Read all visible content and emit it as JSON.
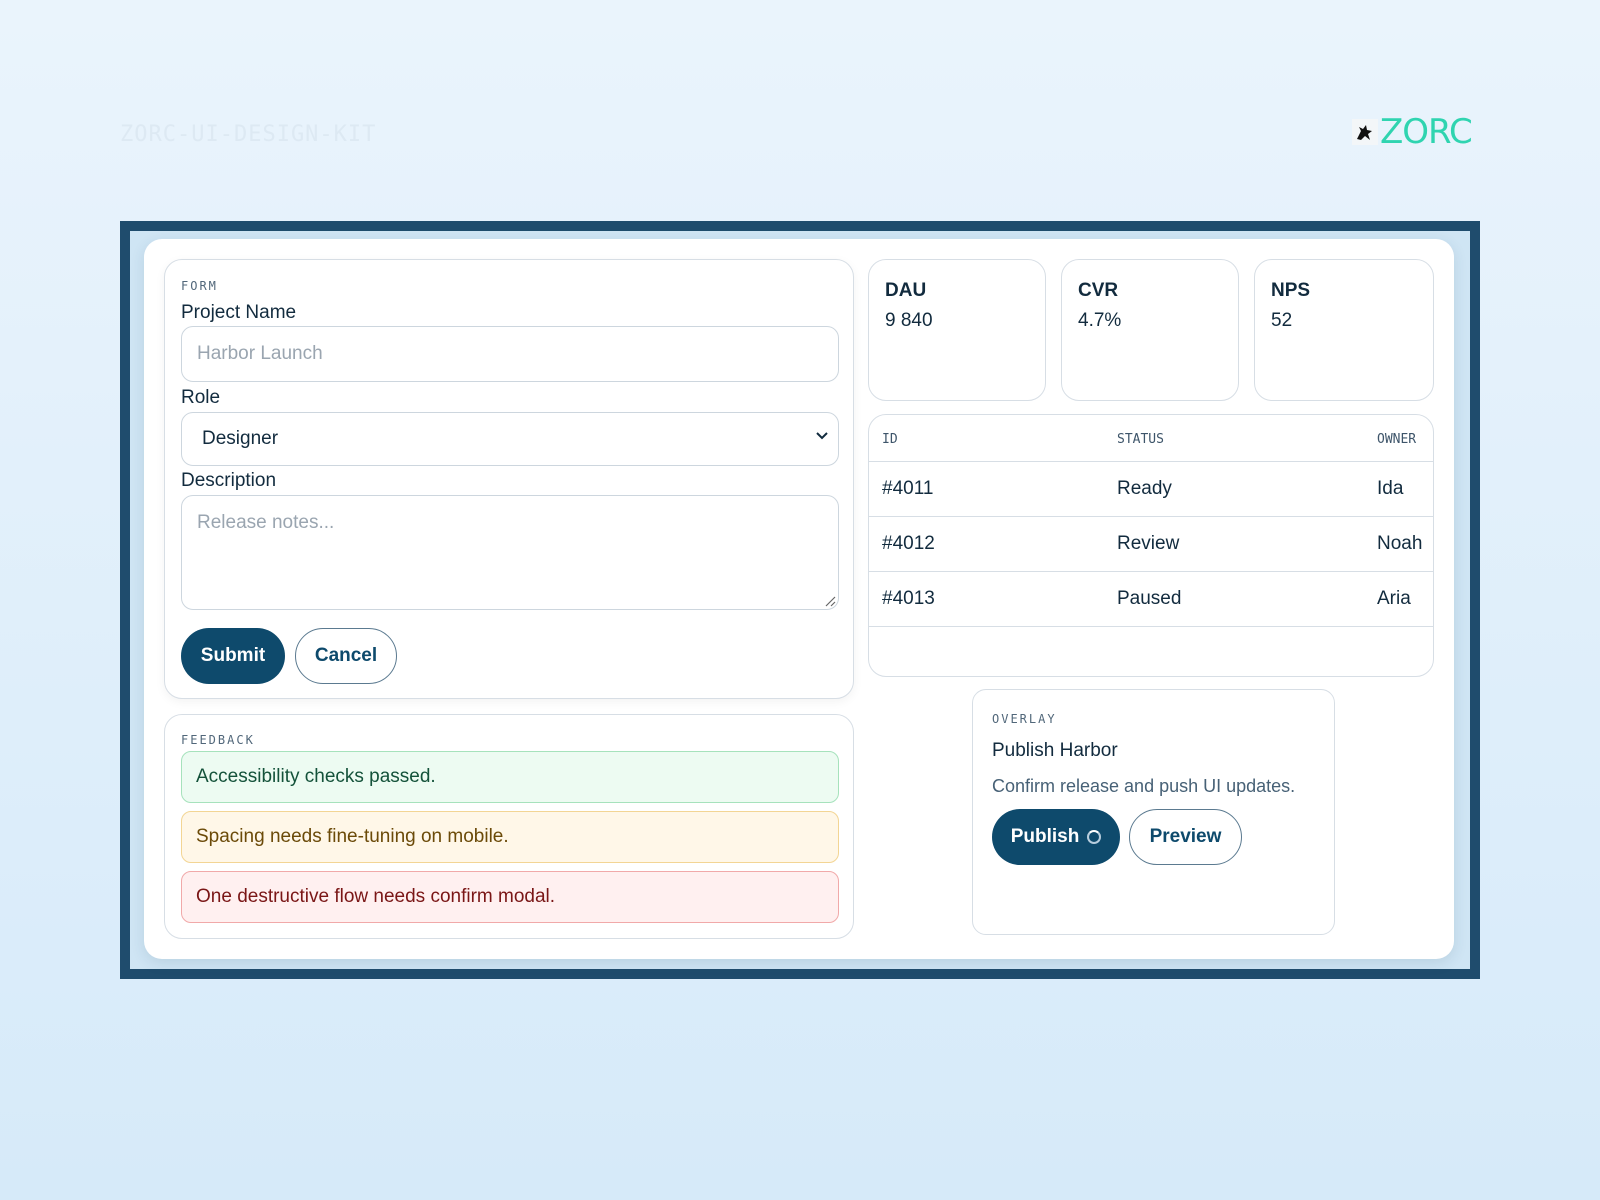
{
  "header": {
    "kit_label": "ZORC-UI-DESIGN-KIT",
    "logo_text": "ZORC"
  },
  "form": {
    "section_label": "FORM",
    "project_name_label": "Project Name",
    "project_name_placeholder": "Harbor Launch",
    "role_label": "Role",
    "role_value": "Designer",
    "description_label": "Description",
    "description_placeholder": "Release notes...",
    "submit_label": "Submit",
    "cancel_label": "Cancel"
  },
  "feedback": {
    "section_label": "FEEDBACK",
    "messages": [
      {
        "text": "Accessibility checks passed.",
        "kind": "success"
      },
      {
        "text": "Spacing needs fine-tuning on mobile.",
        "kind": "warning"
      },
      {
        "text": "One destructive flow needs confirm modal.",
        "kind": "error"
      }
    ]
  },
  "stats": [
    {
      "name": "DAU",
      "value": "9 840"
    },
    {
      "name": "CVR",
      "value": "4.7%"
    },
    {
      "name": "NPS",
      "value": "52"
    }
  ],
  "table": {
    "columns": [
      "ID",
      "STATUS",
      "OWNER"
    ],
    "rows": [
      {
        "id": "#4011",
        "status": "Ready",
        "owner": "Ida"
      },
      {
        "id": "#4012",
        "status": "Review",
        "owner": "Noah"
      },
      {
        "id": "#4013",
        "status": "Paused",
        "owner": "Aria"
      }
    ]
  },
  "overlay": {
    "section_label": "OVERLAY",
    "title": "Publish Harbor",
    "description": "Confirm release and push UI updates.",
    "publish_label": "Publish",
    "preview_label": "Preview"
  },
  "colors": {
    "primary": "#0e4a6c",
    "frame": "#1f4c6d",
    "logo": "#2fd4b0",
    "success_bg": "#edfbf2",
    "warning_bg": "#fff7e8",
    "error_bg": "#fff0f0"
  },
  "icons": [
    "logo-mascot-icon",
    "chevron-down-icon",
    "resize-grip-icon",
    "spinner-icon"
  ]
}
